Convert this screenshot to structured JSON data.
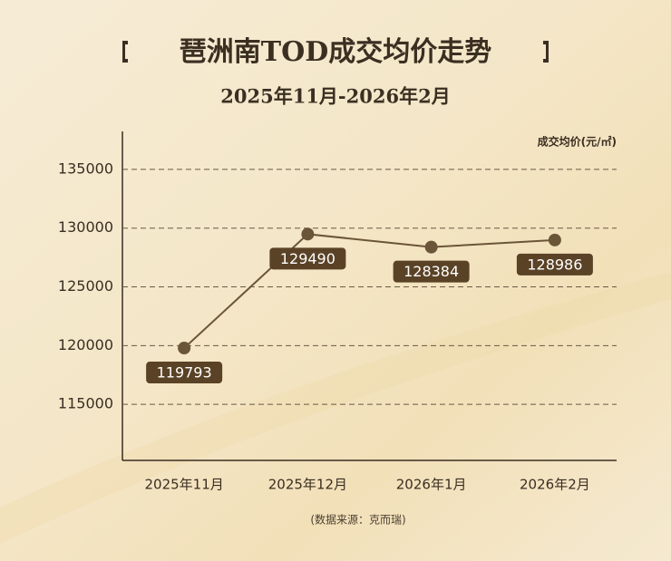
{
  "chart_data": {
    "type": "line",
    "title": "琶洲南TOD成交均价走势",
    "subtitle": "2025年11月-2026年2月",
    "y_label": "成交均价(元/㎡)",
    "source": "(数据来源：克而瑞)",
    "categories": [
      "2025年11月",
      "2025年12月",
      "2026年1月",
      "2026年2月"
    ],
    "values": [
      119793,
      129490,
      128384,
      128986
    ],
    "color": "#6b5538",
    "label_color": "#5a4226",
    "ylim": [
      110000,
      138000
    ],
    "yticks": [
      115000,
      120000,
      125000,
      130000,
      135000
    ],
    "grid": true
  }
}
